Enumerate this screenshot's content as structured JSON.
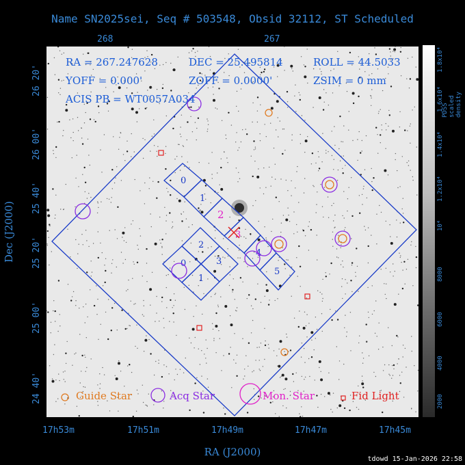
{
  "title": "Name SN2025sei, Seq # 503548, Obsid 32112, ST Scheduled",
  "top_ticks": [
    "268",
    "267"
  ],
  "dec_ticks": [
    "26 20'",
    "26 00'",
    "25 40'",
    "25 20'",
    "25 00'",
    "24 40'"
  ],
  "ra_ticks": [
    "17h53m",
    "17h51m",
    "17h49m",
    "17h47m",
    "17h45m"
  ],
  "x_axis_label": "RA (J2000)",
  "y_axis_label": "Dec (J2000)",
  "info": {
    "ra": "RA = 267.247628",
    "dec": "DEC = 25.495814",
    "roll": "ROLL = 44.5033",
    "yoff": "YOFF =   0.000'",
    "zoff": "ZOFF =  0.0000'",
    "zsim": "ZSIM = 0 mm",
    "acis": "ACIS PB = WT0057A034"
  },
  "chips": [
    "0",
    "1",
    "2",
    "3",
    "0",
    "1",
    "2",
    "3",
    "4",
    "5"
  ],
  "target_marker": "3",
  "legend": {
    "guide": "Guide Star",
    "acq": "Acq Star",
    "mon": "Mon. Star",
    "fid": "Fid Light"
  },
  "colorbar": {
    "title": "PDSS scaled density",
    "labels": [
      "1.8x10⁴",
      "1.6x10⁴",
      "1.4x10⁴",
      "1.2x10⁴",
      "10⁴",
      "8000",
      "6000",
      "4000",
      "2000"
    ]
  },
  "stamp": "tdowd 15-Jan-2026 22:58",
  "colors": {
    "axis": "#3a8ad8",
    "guide": "#e07a20",
    "acq": "#8a2be2",
    "mon": "#e020c8",
    "fid": "#e02020",
    "field": "#1a3cc8"
  }
}
